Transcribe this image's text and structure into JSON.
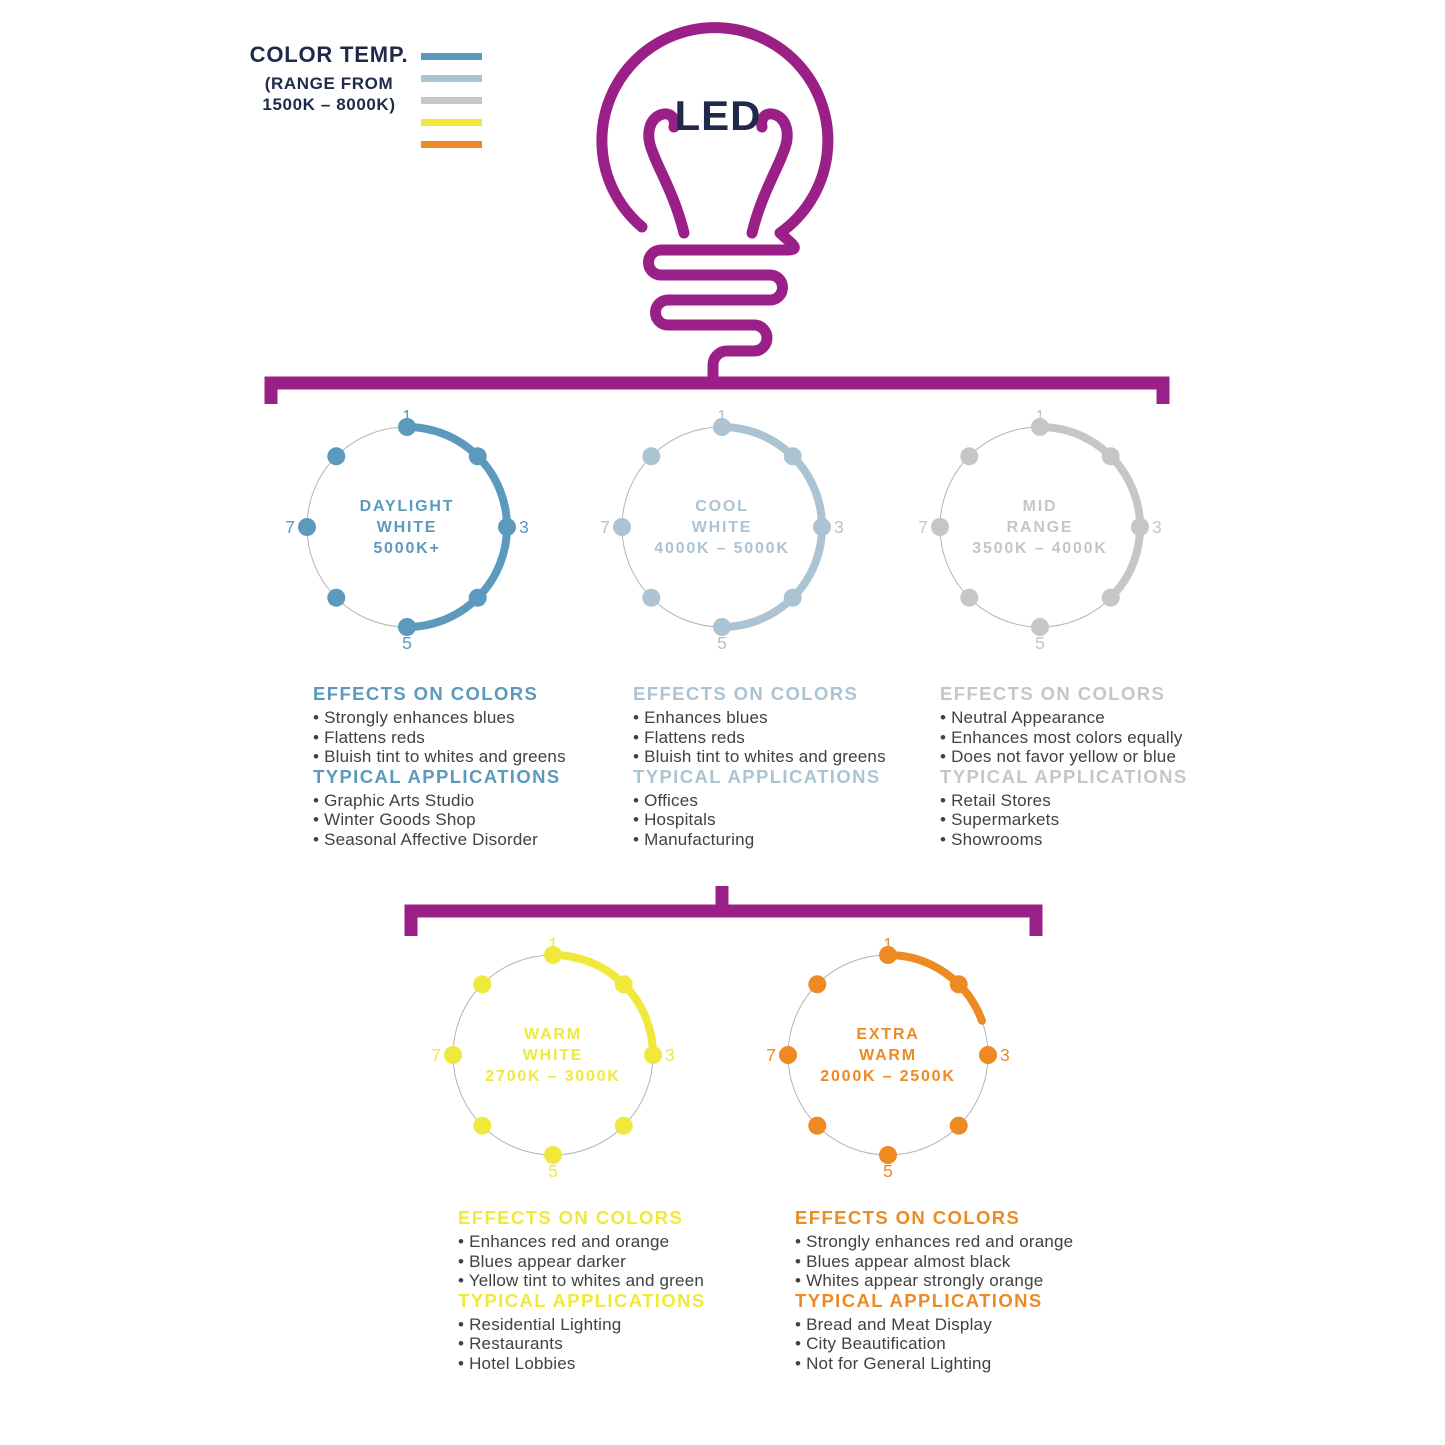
{
  "palette": {
    "purple": "#9a2088",
    "navy": "#1f2a4b",
    "bullet_text": "#414042",
    "ring_gray": "#b5b5b8"
  },
  "legend": {
    "title": "COLOR TEMP.",
    "subtitle_line1": "(RANGE FROM",
    "subtitle_line2": "1500K – 8000K)",
    "bars": [
      "#5b9abc",
      "#abc3d3",
      "#c6c6c9",
      "#f0e93b",
      "#ee8a23"
    ]
  },
  "bulb": {
    "label": "LED"
  },
  "wheels": [
    {
      "line1": "DAYLIGHT",
      "line2": "WHITE",
      "line3": "5000K+",
      "color": "#5b9abc",
      "arc_degrees": 180,
      "dots": 8,
      "ticks": {
        "top": "1",
        "right": "3",
        "bottom": "5",
        "left": "7"
      }
    },
    {
      "line1": "COOL",
      "line2": "WHITE",
      "line3": "4000K – 5000K",
      "color": "#abc3d3",
      "arc_degrees": 180,
      "dots": 8,
      "ticks": {
        "top": "1",
        "right": "3",
        "bottom": "5",
        "left": "7"
      }
    },
    {
      "line1": "MID",
      "line2": "RANGE",
      "line3": "3500K – 4000K",
      "color": "#c6c6c9",
      "arc_degrees": 135,
      "dots": 8,
      "ticks": {
        "top": "1",
        "right": "3",
        "bottom": "5",
        "left": "7"
      }
    },
    {
      "line1": "WARM",
      "line2": "WHITE",
      "line3": "2700K – 3000K",
      "color": "#f0e93b",
      "arc_degrees": 90,
      "dots": 8,
      "ticks": {
        "top": "1",
        "right": "3",
        "bottom": "5",
        "left": "7"
      }
    },
    {
      "line1": "EXTRA",
      "line2": "WARM",
      "line3": "2000K – 2500K",
      "color": "#ee8a23",
      "arc_degrees": 70,
      "dots": 8,
      "ticks": {
        "top": "1",
        "right": "3",
        "bottom": "5",
        "left": "7"
      }
    }
  ],
  "columns": [
    {
      "color": "#5b9abc",
      "effects_title": "EFFECTS ON COLORS",
      "effects": [
        "Strongly enhances blues",
        "Flattens reds",
        "Bluish tint to whites and greens"
      ],
      "applications_title": "TYPICAL APPLICATIONS",
      "applications": [
        "Graphic Arts Studio",
        "Winter Goods Shop",
        "Seasonal Affective Disorder"
      ]
    },
    {
      "color": "#abc3d3",
      "effects_title": "EFFECTS ON COLORS",
      "effects": [
        "Enhances blues",
        "Flattens reds",
        "Bluish tint to whites and greens"
      ],
      "applications_title": "TYPICAL APPLICATIONS",
      "applications": [
        "Offices",
        "Hospitals",
        "Manufacturing"
      ]
    },
    {
      "color": "#c6c6c9",
      "effects_title": "EFFECTS ON COLORS",
      "effects": [
        "Neutral Appearance",
        "Enhances most colors equally",
        "Does not favor yellow or blue"
      ],
      "applications_title": "TYPICAL APPLICATIONS",
      "applications": [
        "Retail Stores",
        "Supermarkets",
        "Showrooms"
      ]
    },
    {
      "color": "#f0e93b",
      "effects_title": "EFFECTS ON COLORS",
      "effects": [
        "Enhances red and orange",
        "Blues appear darker",
        "Yellow tint to whites and green"
      ],
      "applications_title": "TYPICAL APPLICATIONS",
      "applications": [
        "Residential Lighting",
        "Restaurants",
        "Hotel Lobbies"
      ]
    },
    {
      "color": "#ee8a23",
      "effects_title": "EFFECTS ON COLORS",
      "effects": [
        "Strongly enhances red and orange",
        "Blues appear almost black",
        "Whites appear strongly orange"
      ],
      "applications_title": "TYPICAL APPLICATIONS",
      "applications": [
        "Bread and Meat Display",
        "City Beautification",
        "Not for General Lighting"
      ]
    }
  ]
}
